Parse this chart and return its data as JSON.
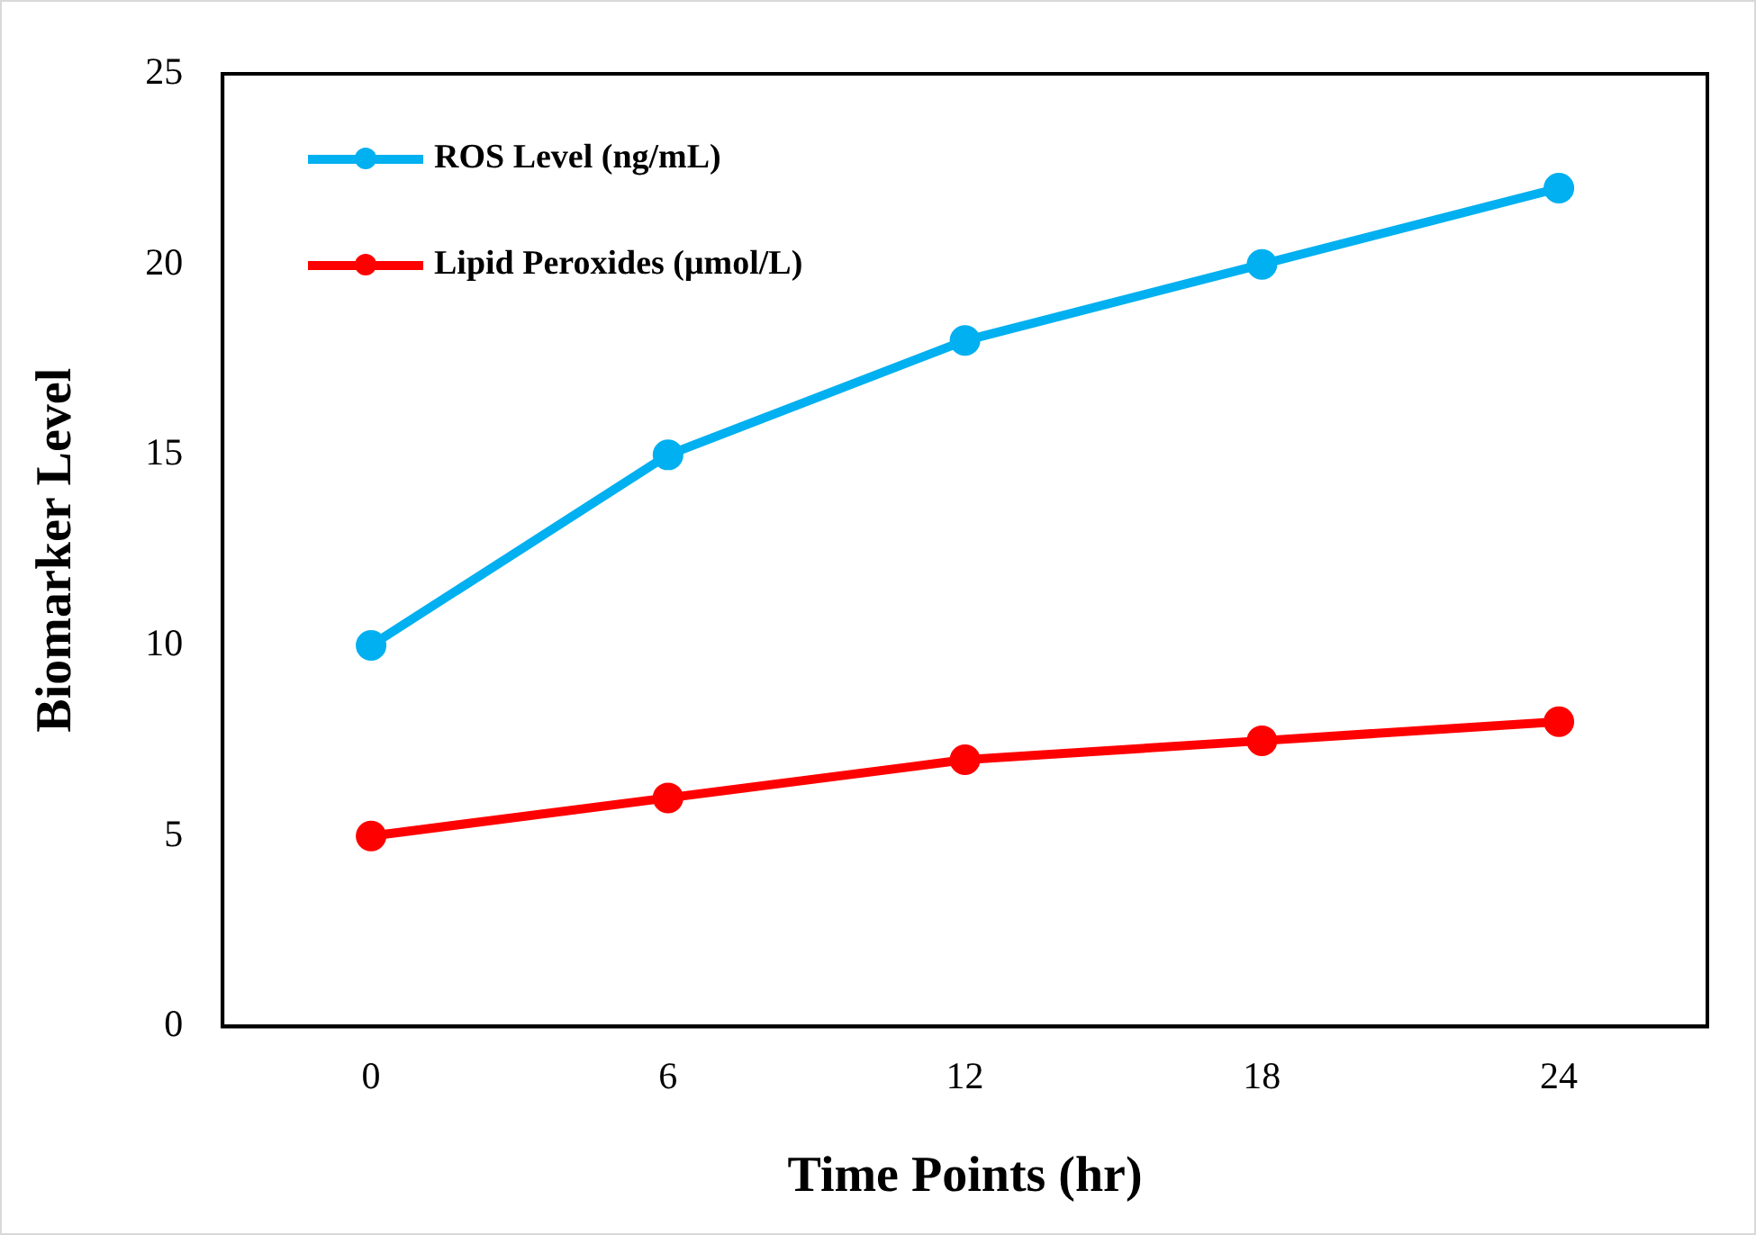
{
  "chart_data": {
    "type": "line",
    "xlabel": "Time Points (hr)",
    "ylabel": "Biomarker Level",
    "categories": [
      "0",
      "6",
      "12",
      "18",
      "24"
    ],
    "series": [
      {
        "name": "ROS Level (ng/mL)",
        "color": "#00b0f0",
        "values": [
          10,
          15,
          18,
          20,
          22
        ]
      },
      {
        "name": "Lipid Peroxides (μmol/L)",
        "color": "#ff0000",
        "values": [
          5,
          6,
          7,
          7.5,
          8
        ]
      }
    ],
    "ylim": [
      0,
      25
    ],
    "yticks": [
      0,
      5,
      10,
      15,
      20,
      25
    ],
    "grid": false,
    "legend": "top left",
    "marker": "circle",
    "line_style": "solid"
  }
}
